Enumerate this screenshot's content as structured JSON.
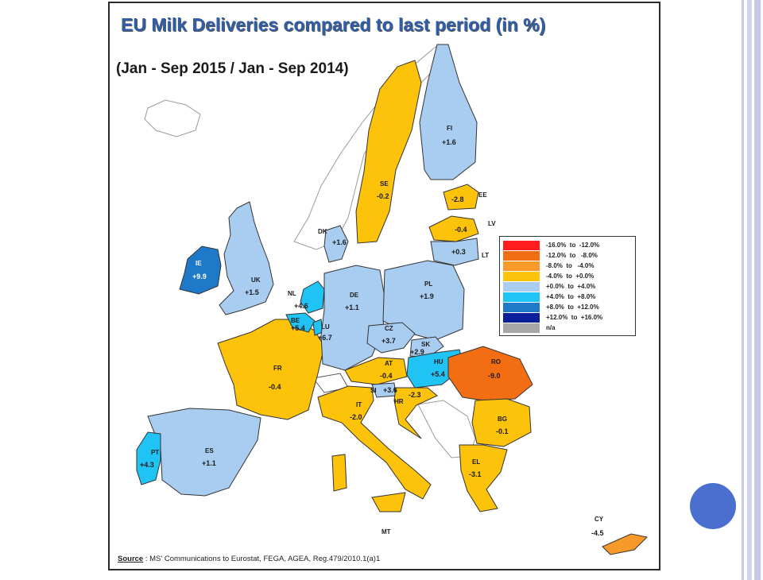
{
  "title": "EU Milk Deliveries compared to last period (in %)",
  "subtitle": "(Jan - Sep 2015  / Jan - Sep 2014)",
  "legend": [
    {
      "range": "-16.0%  to  -12.0%",
      "color": "#ff1c1c"
    },
    {
      "range": "-12.0%  to   -8.0%",
      "color": "#f36d12"
    },
    {
      "range": "-8.0%  to   -4.0%",
      "color": "#f89a2a"
    },
    {
      "range": "-4.0%  to  +0.0%",
      "color": "#fdc20a"
    },
    {
      "range": "+0.0%  to  +4.0%",
      "color": "#a9cdf1"
    },
    {
      "range": "+4.0%  to  +8.0%",
      "color": "#20c4f4"
    },
    {
      "range": "+8.0%  to  +12.0%",
      "color": "#1f79c9"
    },
    {
      "range": "+12.0%  to  +16.0%",
      "color": "#0a1e9a"
    },
    {
      "range": "n/a",
      "color": "#a6a6a6"
    }
  ],
  "countries": [
    {
      "code": "IE",
      "value": "+9.9"
    },
    {
      "code": "UK",
      "value": "+1.5"
    },
    {
      "code": "FR",
      "value": "-0.4"
    },
    {
      "code": "ES",
      "value": "+1.1"
    },
    {
      "code": "PT",
      "value": "+4.3"
    },
    {
      "code": "NL",
      "value": "+4.6"
    },
    {
      "code": "BE",
      "value": "+5.4"
    },
    {
      "code": "LU",
      "value": "+6.7"
    },
    {
      "code": "DE",
      "value": "+1.1"
    },
    {
      "code": "DK",
      "value": "+1.6"
    },
    {
      "code": "SE",
      "value": "-0.2"
    },
    {
      "code": "FI",
      "value": "+1.6"
    },
    {
      "code": "EE",
      "value": "-2.8"
    },
    {
      "code": "LV",
      "value": "-0.4"
    },
    {
      "code": "LT",
      "value": "+0.3"
    },
    {
      "code": "PL",
      "value": "+1.9"
    },
    {
      "code": "CZ",
      "value": "+3.7"
    },
    {
      "code": "SK",
      "value": "+2.9"
    },
    {
      "code": "AT",
      "value": "-0.4"
    },
    {
      "code": "HU",
      "value": "+5.4"
    },
    {
      "code": "RO",
      "value": "-9.0"
    },
    {
      "code": "SI",
      "value": "+3.6"
    },
    {
      "code": "HR",
      "value": "-2.3"
    },
    {
      "code": "IT",
      "value": "-2.0"
    },
    {
      "code": "BG",
      "value": "-0.1"
    },
    {
      "code": "EL",
      "value": "-3.1"
    },
    {
      "code": "MT",
      "value": ""
    },
    {
      "code": "CY",
      "value": "-4.5"
    }
  ],
  "source": {
    "label": "Source",
    "text": " : MS' Communications to Eurostat, FEGA, AGEA, Reg.479/2010.1(a)1"
  }
}
